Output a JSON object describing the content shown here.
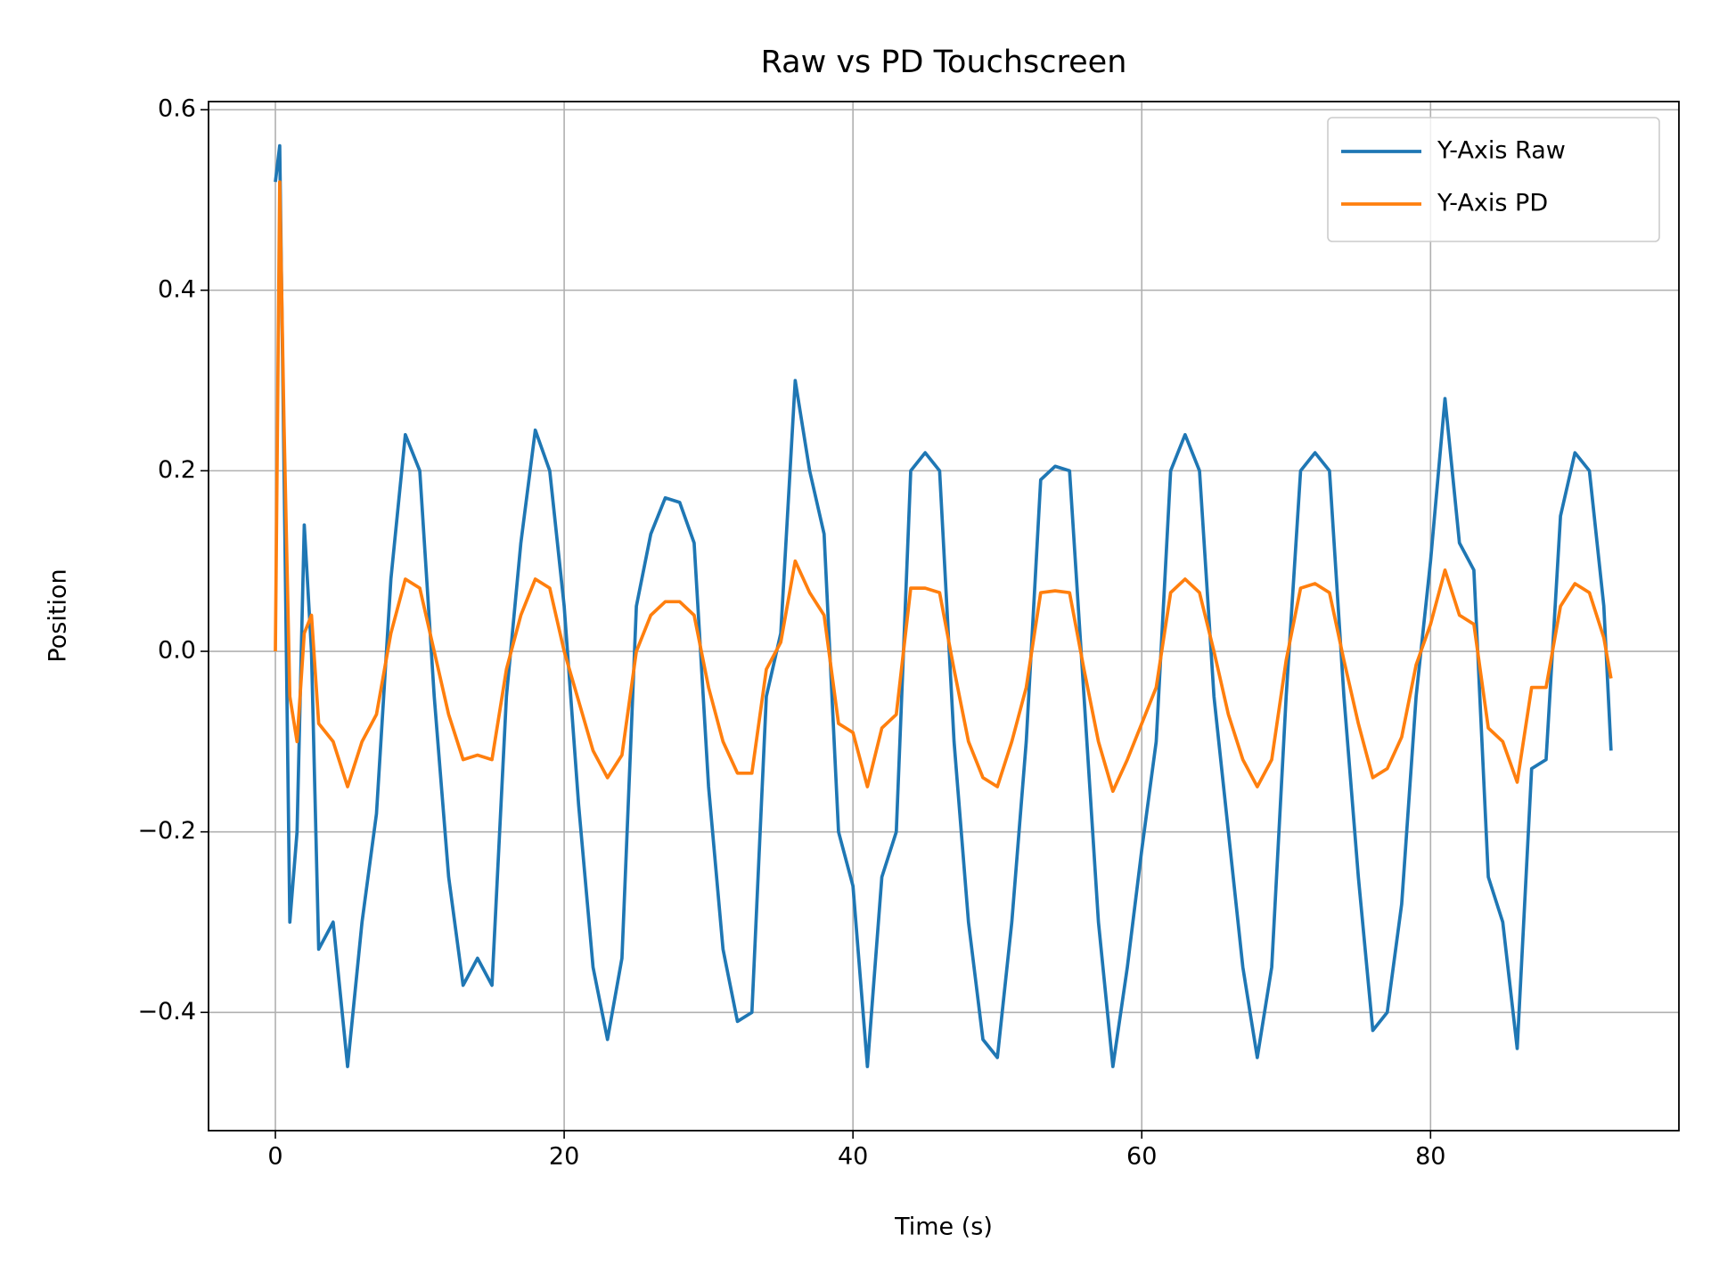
{
  "chart_data": {
    "type": "line",
    "title": "Raw vs PD Touchscreen",
    "x_label": "Time (s)",
    "y_label": "Position",
    "x": [
      0,
      0.3,
      0.6,
      1,
      1.5,
      2,
      2.5,
      3,
      4,
      5,
      6,
      7,
      8,
      9,
      10,
      11,
      12,
      13,
      14,
      15,
      16,
      17,
      18,
      19,
      20,
      21,
      22,
      23,
      24,
      25,
      26,
      27,
      28,
      29,
      30,
      31,
      32,
      33,
      34,
      35,
      36,
      37,
      38,
      39,
      40,
      41,
      42,
      43,
      44,
      45,
      46,
      47,
      48,
      49,
      50,
      51,
      52,
      53,
      54,
      55,
      56,
      57,
      58,
      59,
      60,
      61,
      62,
      63,
      64,
      65,
      66,
      67,
      68,
      69,
      70,
      71,
      72,
      73,
      74,
      75,
      76,
      77,
      78,
      79,
      80,
      81,
      82,
      83,
      84,
      85,
      86,
      87,
      88,
      89,
      90,
      91,
      92,
      92.5
    ],
    "series": [
      {
        "name": "Y-Axis Raw",
        "color": "#1f77b4",
        "values": [
          0.52,
          0.56,
          0.2,
          -0.3,
          -0.2,
          0.14,
          0.0,
          -0.33,
          -0.3,
          -0.46,
          -0.3,
          -0.18,
          0.08,
          0.24,
          0.2,
          -0.05,
          -0.25,
          -0.37,
          -0.34,
          -0.37,
          -0.05,
          0.12,
          0.245,
          0.2,
          0.05,
          -0.17,
          -0.35,
          -0.43,
          -0.34,
          0.05,
          0.13,
          0.17,
          0.165,
          0.12,
          -0.15,
          -0.33,
          -0.41,
          -0.4,
          -0.05,
          0.02,
          0.3,
          0.2,
          0.13,
          -0.2,
          -0.26,
          -0.46,
          -0.25,
          -0.2,
          0.2,
          0.22,
          0.2,
          -0.1,
          -0.3,
          -0.43,
          -0.45,
          -0.3,
          -0.1,
          0.19,
          0.205,
          0.2,
          -0.05,
          -0.3,
          -0.46,
          -0.35,
          -0.22,
          -0.1,
          0.2,
          0.24,
          0.2,
          -0.05,
          -0.2,
          -0.35,
          -0.45,
          -0.35,
          -0.05,
          0.2,
          0.22,
          0.2,
          -0.05,
          -0.25,
          -0.42,
          -0.4,
          -0.28,
          -0.05,
          0.1,
          0.28,
          0.12,
          0.09,
          -0.25,
          -0.3,
          -0.44,
          -0.13,
          -0.12,
          0.15,
          0.22,
          0.2,
          0.05,
          -0.11
        ]
      },
      {
        "name": "Y-Axis PD",
        "color": "#ff7f0e",
        "values": [
          0,
          0.52,
          0.25,
          -0.05,
          -0.1,
          0.02,
          0.04,
          -0.08,
          -0.1,
          -0.15,
          -0.1,
          -0.07,
          0.02,
          0.08,
          0.07,
          0.0,
          -0.07,
          -0.12,
          -0.115,
          -0.12,
          -0.02,
          0.04,
          0.08,
          0.07,
          0.0,
          -0.055,
          -0.11,
          -0.14,
          -0.115,
          0.0,
          0.04,
          0.055,
          0.055,
          0.04,
          -0.04,
          -0.1,
          -0.135,
          -0.135,
          -0.02,
          0.01,
          0.1,
          0.065,
          0.04,
          -0.08,
          -0.09,
          -0.15,
          -0.085,
          -0.07,
          0.07,
          0.07,
          0.065,
          -0.02,
          -0.1,
          -0.14,
          -0.15,
          -0.1,
          -0.04,
          0.065,
          0.067,
          0.065,
          -0.02,
          -0.1,
          -0.155,
          -0.12,
          -0.08,
          -0.04,
          0.065,
          0.08,
          0.065,
          0.0,
          -0.07,
          -0.12,
          -0.15,
          -0.12,
          -0.01,
          0.07,
          0.075,
          0.065,
          -0.01,
          -0.08,
          -0.14,
          -0.13,
          -0.095,
          -0.015,
          0.03,
          0.09,
          0.04,
          0.03,
          -0.085,
          -0.1,
          -0.145,
          -0.04,
          -0.04,
          0.05,
          0.075,
          0.065,
          0.015,
          -0.03
        ]
      }
    ],
    "xlim": [
      -4.63,
      97.2
    ],
    "ylim": [
      -0.531,
      0.609
    ],
    "xticks": [
      0,
      20,
      40,
      60,
      80
    ],
    "yticks": [
      {
        "value": -0.4,
        "label": "−0.4"
      },
      {
        "value": -0.2,
        "label": "−0.2"
      },
      {
        "value": 0,
        "label": "0.0"
      },
      0.2,
      0.4,
      0.6
    ],
    "grid": true,
    "legend": "upper right"
  }
}
